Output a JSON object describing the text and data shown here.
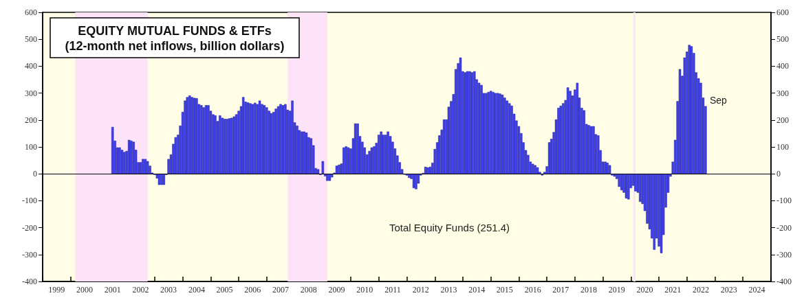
{
  "chart_data": {
    "type": "bar",
    "title": "EQUITY MUTUAL FUNDS & ETFs",
    "subtitle": "(12-month net inflows, billion dollars)",
    "annotations": [
      "Total Equity Funds (251.4)",
      {
        "text": "Sep",
        "x": "2022-09",
        "y": 251.4
      }
    ],
    "x": [
      "2001-07",
      "2001-08",
      "2001-09",
      "2001-10",
      "2001-11",
      "2001-12",
      "2002-01",
      "2002-02",
      "2002-03",
      "2002-04",
      "2002-05",
      "2002-06",
      "2002-07",
      "2002-08",
      "2002-09",
      "2002-10",
      "2002-11",
      "2002-12",
      "2003-01",
      "2003-02",
      "2003-03",
      "2003-04",
      "2003-05",
      "2003-06",
      "2003-07",
      "2003-08",
      "2003-09",
      "2003-10",
      "2003-11",
      "2003-12",
      "2004-01",
      "2004-02",
      "2004-03",
      "2004-04",
      "2004-05",
      "2004-06",
      "2004-07",
      "2004-08",
      "2004-09",
      "2004-10",
      "2004-11",
      "2004-12",
      "2005-01",
      "2005-02",
      "2005-03",
      "2005-04",
      "2005-05",
      "2005-06",
      "2005-07",
      "2005-08",
      "2005-09",
      "2005-10",
      "2005-11",
      "2005-12",
      "2006-01",
      "2006-02",
      "2006-03",
      "2006-04",
      "2006-05",
      "2006-06",
      "2006-07",
      "2006-08",
      "2006-09",
      "2006-10",
      "2006-11",
      "2006-12",
      "2007-01",
      "2007-02",
      "2007-03",
      "2007-04",
      "2007-05",
      "2007-06",
      "2007-07",
      "2007-08",
      "2007-09",
      "2007-10",
      "2007-11",
      "2007-12",
      "2008-01",
      "2008-02",
      "2008-03",
      "2008-04",
      "2008-05",
      "2008-06",
      "2008-07",
      "2008-08",
      "2008-09",
      "2008-10",
      "2008-11",
      "2008-12",
      "2009-01",
      "2009-02",
      "2009-03",
      "2009-04",
      "2009-05",
      "2009-06",
      "2009-07",
      "2009-08",
      "2009-09",
      "2009-10",
      "2009-11",
      "2009-12",
      "2010-01",
      "2010-02",
      "2010-03",
      "2010-04",
      "2010-05",
      "2010-06",
      "2010-07",
      "2010-08",
      "2010-09",
      "2010-10",
      "2010-11",
      "2010-12",
      "2011-01",
      "2011-02",
      "2011-03",
      "2011-04",
      "2011-05",
      "2011-06",
      "2011-07",
      "2011-08",
      "2011-09",
      "2011-10",
      "2011-11",
      "2011-12",
      "2012-01",
      "2012-02",
      "2012-03",
      "2012-04",
      "2012-05",
      "2012-06",
      "2012-07",
      "2012-08",
      "2012-09",
      "2012-10",
      "2012-11",
      "2012-12",
      "2013-01",
      "2013-02",
      "2013-03",
      "2013-04",
      "2013-05",
      "2013-06",
      "2013-07",
      "2013-08",
      "2013-09",
      "2013-10",
      "2013-11",
      "2013-12",
      "2014-01",
      "2014-02",
      "2014-03",
      "2014-04",
      "2014-05",
      "2014-06",
      "2014-07",
      "2014-08",
      "2014-09",
      "2014-10",
      "2014-11",
      "2014-12",
      "2015-01",
      "2015-02",
      "2015-03",
      "2015-04",
      "2015-05",
      "2015-06",
      "2015-07",
      "2015-08",
      "2015-09",
      "2015-10",
      "2015-11",
      "2015-12",
      "2016-01",
      "2016-02",
      "2016-03",
      "2016-04",
      "2016-05",
      "2016-06",
      "2016-07",
      "2016-08",
      "2016-09",
      "2016-10",
      "2016-11",
      "2016-12",
      "2017-01",
      "2017-02",
      "2017-03",
      "2017-04",
      "2017-05",
      "2017-06",
      "2017-07",
      "2017-08",
      "2017-09",
      "2017-10",
      "2017-11",
      "2017-12",
      "2018-01",
      "2018-02",
      "2018-03",
      "2018-04",
      "2018-05",
      "2018-06",
      "2018-07",
      "2018-08",
      "2018-09",
      "2018-10",
      "2018-11",
      "2018-12",
      "2019-01",
      "2019-02",
      "2019-03",
      "2019-04",
      "2019-05",
      "2019-06",
      "2019-07",
      "2019-08",
      "2019-09",
      "2019-10",
      "2019-11",
      "2019-12",
      "2020-01",
      "2020-02",
      "2020-03",
      "2020-04",
      "2020-05",
      "2020-06",
      "2020-07",
      "2020-08",
      "2020-09",
      "2020-10",
      "2020-11",
      "2020-12",
      "2021-01",
      "2021-02",
      "2021-03",
      "2021-04",
      "2021-05",
      "2021-06",
      "2021-07",
      "2021-08",
      "2021-09",
      "2021-10",
      "2021-11",
      "2021-12",
      "2022-01",
      "2022-02",
      "2022-03",
      "2022-04",
      "2022-05",
      "2022-06",
      "2022-07",
      "2022-08",
      "2022-09"
    ],
    "values": [
      174,
      123,
      98,
      98,
      89,
      81,
      85,
      126,
      123,
      119,
      89,
      43,
      43,
      55,
      55,
      47,
      30,
      4,
      -4,
      -17,
      -41,
      -41,
      -41,
      -4,
      55,
      72,
      111,
      136,
      145,
      179,
      230,
      272,
      285,
      291,
      285,
      282,
      281,
      259,
      255,
      247,
      255,
      255,
      234,
      221,
      217,
      196,
      217,
      208,
      204,
      204,
      206,
      208,
      213,
      221,
      234,
      251,
      285,
      268,
      265,
      262,
      259,
      264,
      259,
      272,
      259,
      255,
      247,
      234,
      225,
      230,
      242,
      251,
      259,
      255,
      259,
      238,
      234,
      272,
      191,
      179,
      162,
      157,
      157,
      153,
      136,
      132,
      106,
      21,
      17,
      -4,
      47,
      -9,
      -26,
      -26,
      -13,
      4,
      30,
      34,
      38,
      98,
      102,
      98,
      94,
      132,
      187,
      187,
      140,
      119,
      98,
      72,
      85,
      98,
      102,
      115,
      145,
      157,
      145,
      145,
      157,
      140,
      119,
      94,
      68,
      43,
      17,
      -3,
      -6,
      -15,
      -19,
      -53,
      -57,
      -36,
      -6,
      3,
      26,
      24,
      26,
      41,
      92,
      117,
      143,
      164,
      202,
      202,
      249,
      270,
      296,
      389,
      411,
      432,
      381,
      377,
      381,
      381,
      377,
      381,
      351,
      338,
      330,
      300,
      300,
      304,
      308,
      304,
      300,
      300,
      298,
      294,
      283,
      272,
      262,
      253,
      223,
      198,
      177,
      151,
      117,
      88,
      70,
      45,
      37,
      32,
      24,
      7,
      -6,
      7,
      28,
      117,
      130,
      155,
      202,
      245,
      253,
      262,
      274,
      321,
      308,
      291,
      313,
      338,
      283,
      245,
      236,
      185,
      181,
      177,
      177,
      147,
      143,
      88,
      45,
      45,
      41,
      32,
      -6,
      -10,
      -19,
      -48,
      -61,
      -70,
      -91,
      -95,
      -53,
      -44,
      -65,
      -70,
      -104,
      -112,
      -138,
      -185,
      -206,
      -240,
      -282,
      -240,
      -270,
      -295,
      -227,
      -125,
      -70,
      -10,
      45,
      126,
      270,
      389,
      364,
      432,
      454,
      479,
      474,
      449,
      377,
      355,
      338,
      283,
      251.4
    ],
    "color": "#3f3ff0",
    "xlim": [
      "1999-01",
      "2025-01"
    ],
    "xticks": [
      {
        "value": "1999-01",
        "label": null
      },
      {
        "value": "1999-07",
        "label": "1999"
      },
      {
        "value": "2000-01",
        "label": null
      },
      {
        "value": "2000-07",
        "label": "2000"
      },
      {
        "value": "2001-01",
        "label": null
      },
      {
        "value": "2001-07",
        "label": "2001"
      },
      {
        "value": "2002-01",
        "label": null
      },
      {
        "value": "2002-07",
        "label": "2002"
      },
      {
        "value": "2003-01",
        "label": null
      },
      {
        "value": "2003-07",
        "label": "2003"
      },
      {
        "value": "2004-01",
        "label": null
      },
      {
        "value": "2004-07",
        "label": "2004"
      },
      {
        "value": "2005-01",
        "label": null
      },
      {
        "value": "2005-07",
        "label": "2005"
      },
      {
        "value": "2006-01",
        "label": null
      },
      {
        "value": "2006-07",
        "label": "2006"
      },
      {
        "value": "2007-01",
        "label": null
      },
      {
        "value": "2007-07",
        "label": "2007"
      },
      {
        "value": "2008-01",
        "label": null
      },
      {
        "value": "2008-07",
        "label": "2008"
      },
      {
        "value": "2009-01",
        "label": null
      },
      {
        "value": "2009-07",
        "label": "2009"
      },
      {
        "value": "2010-01",
        "label": null
      },
      {
        "value": "2010-07",
        "label": "2010"
      },
      {
        "value": "2011-01",
        "label": null
      },
      {
        "value": "2011-07",
        "label": "2011"
      },
      {
        "value": "2012-01",
        "label": null
      },
      {
        "value": "2012-07",
        "label": "2012"
      },
      {
        "value": "2013-01",
        "label": null
      },
      {
        "value": "2013-07",
        "label": "2013"
      },
      {
        "value": "2014-01",
        "label": null
      },
      {
        "value": "2014-07",
        "label": "2014"
      },
      {
        "value": "2015-01",
        "label": null
      },
      {
        "value": "2015-07",
        "label": "2015"
      },
      {
        "value": "2016-01",
        "label": null
      },
      {
        "value": "2016-07",
        "label": "2016"
      },
      {
        "value": "2017-01",
        "label": null
      },
      {
        "value": "2017-07",
        "label": "2017"
      },
      {
        "value": "2018-01",
        "label": null
      },
      {
        "value": "2018-07",
        "label": "2018"
      },
      {
        "value": "2019-01",
        "label": null
      },
      {
        "value": "2019-07",
        "label": "2019"
      },
      {
        "value": "2020-01",
        "label": null
      },
      {
        "value": "2020-07",
        "label": "2020"
      },
      {
        "value": "2021-01",
        "label": null
      },
      {
        "value": "2021-07",
        "label": "2021"
      },
      {
        "value": "2022-01",
        "label": null
      },
      {
        "value": "2022-07",
        "label": "2022"
      },
      {
        "value": "2023-01",
        "label": null
      },
      {
        "value": "2023-07",
        "label": "2023"
      },
      {
        "value": "2024-01",
        "label": null
      },
      {
        "value": "2024-07",
        "label": "2024"
      },
      {
        "value": "2025-01",
        "label": null
      }
    ],
    "ylim": [
      -400,
      600
    ],
    "yticks": [
      -400,
      -300,
      -200,
      -100,
      0,
      100,
      200,
      300,
      400,
      500,
      600
    ],
    "y2lim": [
      -400,
      600
    ],
    "y2ticks": [
      -400,
      -300,
      -200,
      -100,
      0,
      100,
      200,
      300,
      400,
      500,
      600
    ],
    "bands": [
      {
        "axis": "x",
        "from": "2000-03",
        "to": "2002-10",
        "color": "#fce3f8"
      },
      {
        "axis": "x",
        "from": "2007-10",
        "to": "2009-03",
        "color": "#fce3f8"
      },
      {
        "axis": "x",
        "from": "2020-02",
        "to": "2020-03",
        "color": "#fce3f8"
      }
    ],
    "ref_lines": [
      {
        "axis": "y",
        "value": 0,
        "color": "#000000"
      }
    ],
    "grid": false
  }
}
